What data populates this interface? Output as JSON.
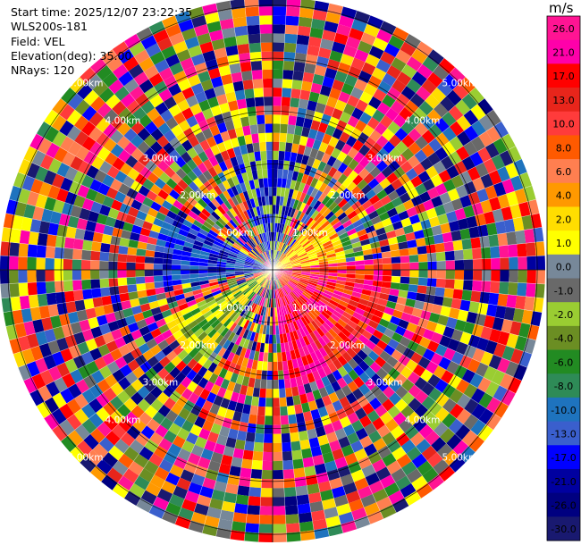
{
  "header": {
    "start_time": "Start time: 2025/12/07 23:22:35",
    "instrument": "WLS200s-181",
    "field": "Field: VEL",
    "elevation": "Elevation(deg): 35.00",
    "nrays": "NRays: 120"
  },
  "chart_data": {
    "type": "heatmap",
    "projection": "polar-ppi",
    "range_ring_labels": [
      "1.00km",
      "2.00km",
      "3.00km",
      "4.00km",
      "5.00km"
    ],
    "range_rings_km": [
      1,
      2,
      3,
      4,
      5
    ],
    "rays": 120,
    "colorbar": {
      "unit": "m/s",
      "tick_labels": [
        "26.0",
        "21.0",
        "17.0",
        "13.0",
        "10.0",
        "8.0",
        "6.0",
        "4.0",
        "2.0",
        "1.0",
        "0.0",
        "-1.0",
        "-2.0",
        "-4.0",
        "-6.0",
        "-8.0",
        "-10.0",
        "-13.0",
        "-17.0",
        "-21.0",
        "-26.0",
        "-30.0"
      ],
      "colors": [
        "#ff1493",
        "#ff00aa",
        "#ff0000",
        "#e8251b",
        "#ff3b3b",
        "#ff5a00",
        "#ff7f50",
        "#ff9900",
        "#ffdd00",
        "#ffff00",
        "#778899",
        "#696969",
        "#9acd32",
        "#6b8e23",
        "#228b22",
        "#2e8b57",
        "#1e73be",
        "#3a5fcd",
        "#0000ff",
        "#0000a0",
        "#000080",
        "#191970"
      ]
    }
  }
}
